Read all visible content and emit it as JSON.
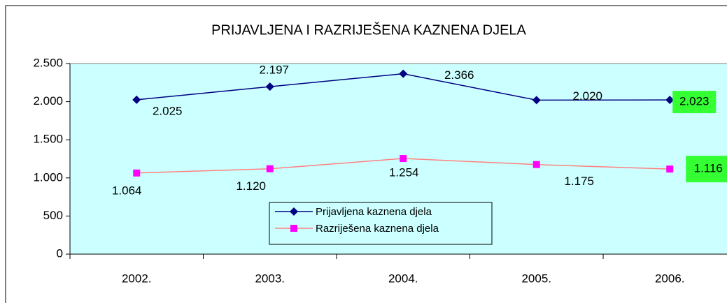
{
  "chart_data": {
    "type": "line",
    "title": "PRIJAVLJENA I RAZRIJEŠENA KAZNENA DJELA",
    "categories": [
      "2002.",
      "2003.",
      "2004.",
      "2005.",
      "2006."
    ],
    "series": [
      {
        "name": "Prijavljena kaznena djela",
        "color": "#000080",
        "marker_color": "#000080",
        "marker": "diamond",
        "values": [
          2025,
          2197,
          2366,
          2020,
          2023
        ],
        "value_labels": [
          "2.025",
          "2.197",
          "2.366",
          "2.020",
          "2.023"
        ]
      },
      {
        "name": "Razriješena kaznena djela",
        "color": "#ff8080",
        "marker_color": "#ff00ff",
        "marker": "square",
        "values": [
          1064,
          1120,
          1254,
          1175,
          1116
        ],
        "value_labels": [
          "1.064",
          "1.120",
          "1.254",
          "1.175",
          "1.116"
        ]
      }
    ],
    "ylim": [
      0,
      2500
    ],
    "yticks": [
      0,
      500,
      {
        "value": 1000,
        "label": "1.000"
      },
      {
        "value": 1500,
        "label": "1.500"
      },
      {
        "value": 2000,
        "label": "2.000"
      },
      {
        "value": 2500,
        "label": "2.500"
      }
    ],
    "plot_background": "#ccffff"
  }
}
